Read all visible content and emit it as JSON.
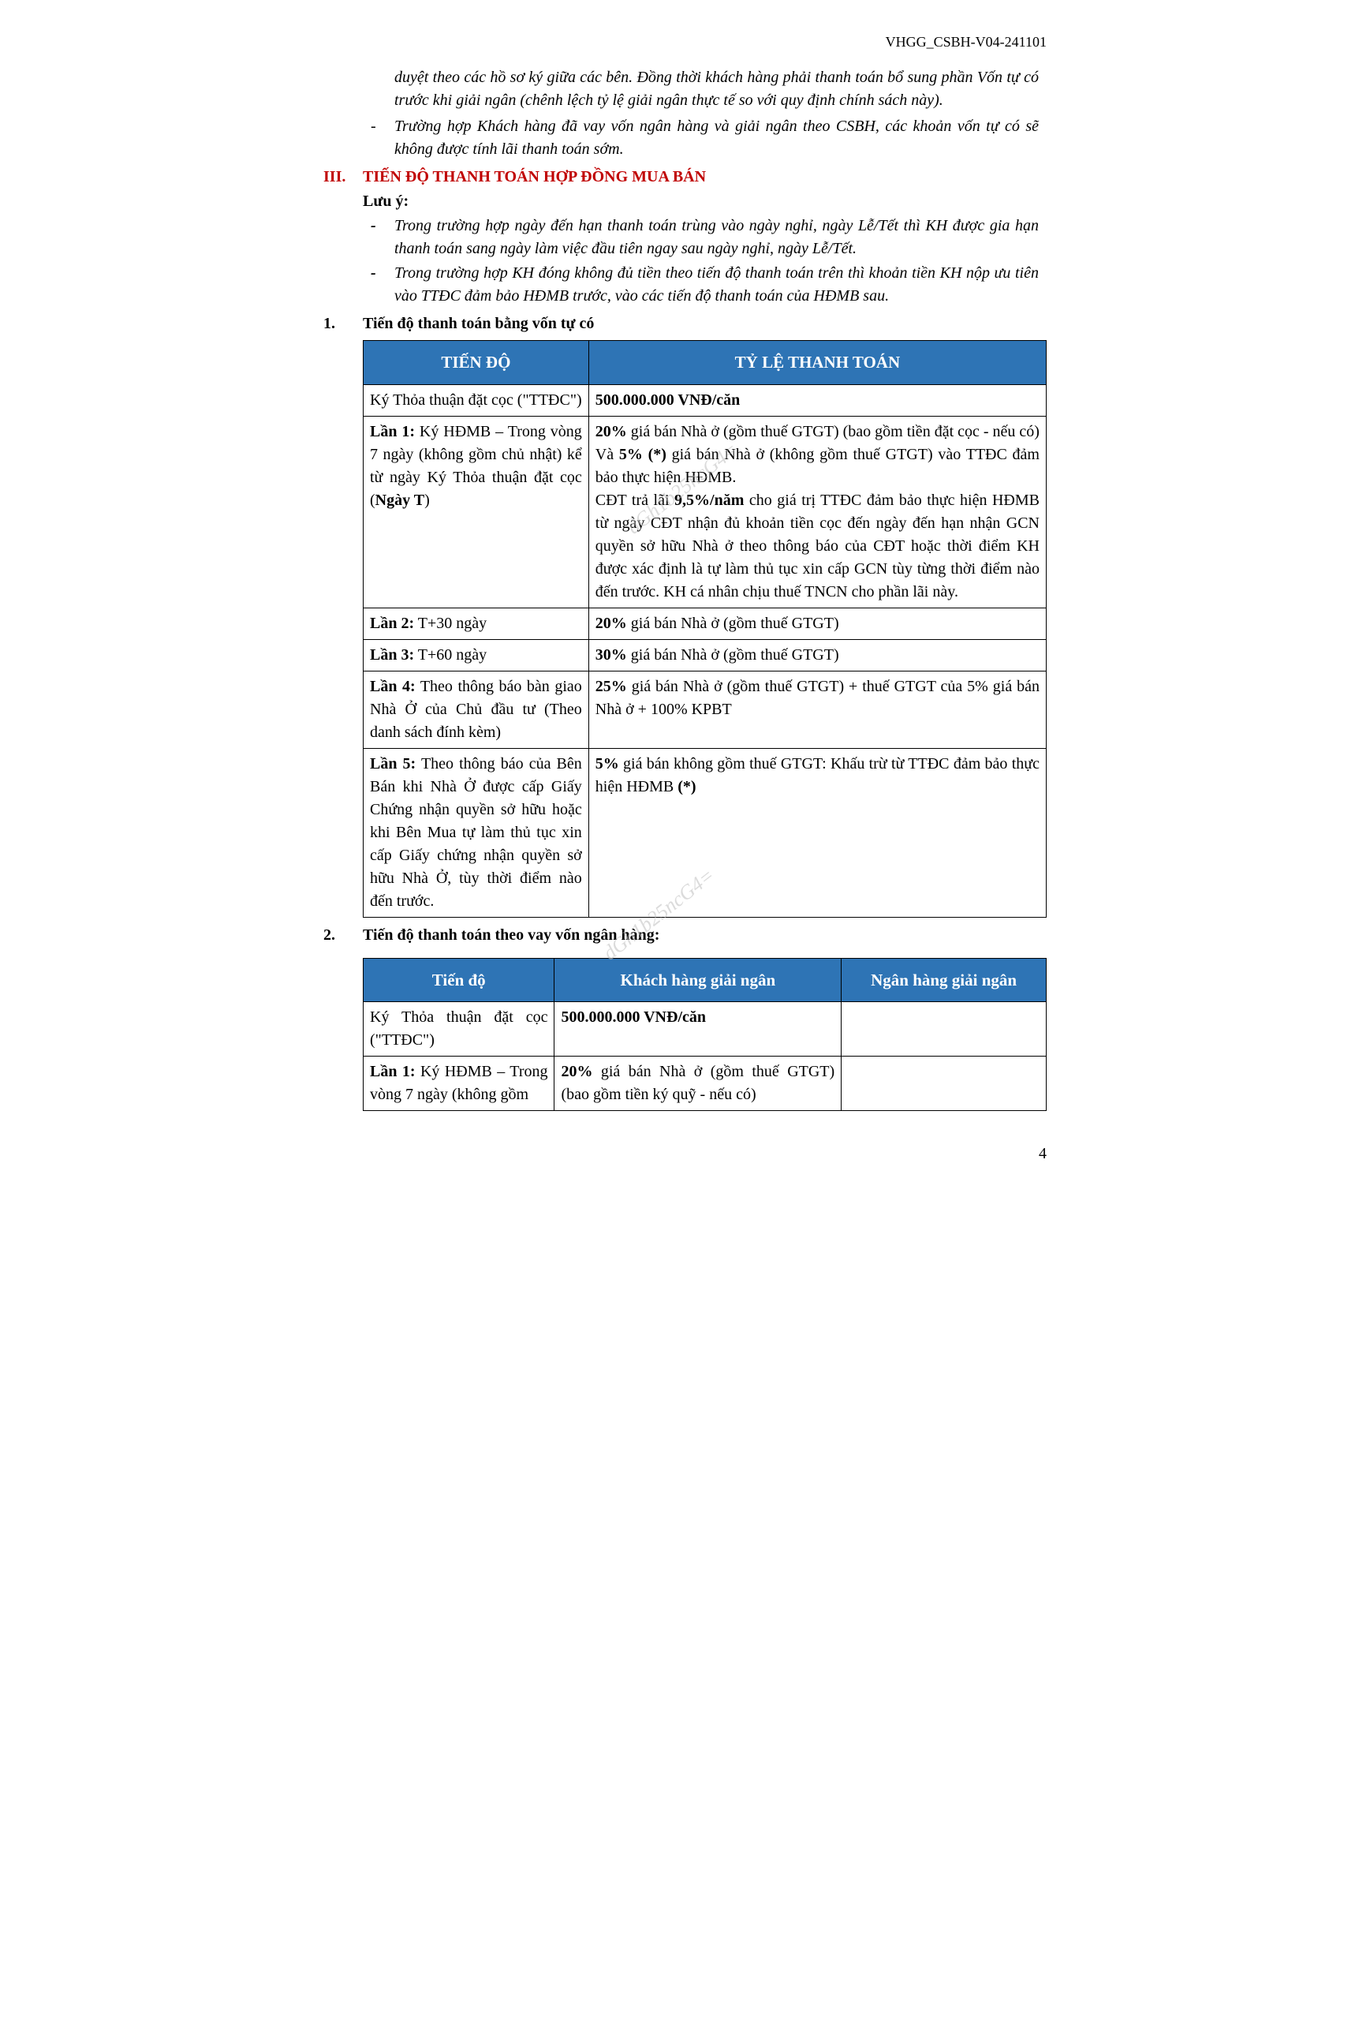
{
  "header": {
    "doc_code": "VHGG_CSBH-V04-241101"
  },
  "intro": {
    "para1": "duyệt theo các hồ sơ ký giữa các bên. Đồng thời khách hàng phải thanh toán bổ sung phần Vốn tự có trước khi giải ngân (chênh lệch tỷ lệ giải ngân thực tế so với quy định chính sách này).",
    "bullet_dash": "-",
    "bullet1": "Trường hợp Khách hàng đã vay vốn ngân hàng và giải ngân theo CSBH, các khoản vốn tự có sẽ không được tính lãi thanh toán sớm."
  },
  "section3": {
    "num": "III.",
    "title": "TIẾN ĐỘ THANH TOÁN HỢP ĐỒNG MUA BÁN",
    "luu_y": "Lưu ý:",
    "note_dash": "-",
    "note1": "Trong trường hợp ngày đến hạn thanh toán trùng vào ngày nghỉ, ngày Lễ/Tết thì KH được gia hạn thanh toán sang ngày làm việc đầu tiên ngay sau ngày nghỉ, ngày Lễ/Tết.",
    "note2": "Trong trường hợp KH đóng không đủ tiền theo tiến độ thanh toán trên thì khoản tiền KH nộp ưu tiên vào TTĐC đảm bảo HĐMB trước, vào các tiến độ thanh toán của HĐMB sau."
  },
  "sub1": {
    "num": "1.",
    "title": "Tiến độ thanh toán bằng vốn tự có"
  },
  "table1": {
    "header_bg": "#2e74b5",
    "header_fg": "#ffffff",
    "col1": "TIẾN ĐỘ",
    "col2": "TỶ LỆ THANH TOÁN",
    "rows": [
      {
        "c1_html": "Ký Thỏa thuận đặt cọc (\"TTĐC\")",
        "c2_html": "<b>500.000.000 VNĐ/căn</b>"
      },
      {
        "c1_html": "<b>Lần 1:</b> Ký HĐMB – Trong vòng 7 ngày (không gồm chủ nhật) kể từ ngày Ký Thỏa thuận đặt cọc (<b>Ngày T</b>)",
        "c2_html": "<b>20%</b> giá bán Nhà ở (gồm thuế GTGT) (bao gồm tiền đặt cọc - nếu có)<br>Và <b>5% (*)</b> giá bán Nhà ở (không gồm thuế GTGT) vào TTĐC đảm bảo thực hiện HĐMB.<br>CĐT trả lãi <b>9,5%/năm</b> cho giá trị TTĐC đảm bảo thực hiện HĐMB từ ngày CĐT nhận đủ khoản tiền cọc đến ngày đến hạn nhận GCN quyền sở hữu Nhà ở theo thông báo của CĐT hoặc thời điểm KH được xác định là tự làm thủ tục xin cấp GCN tùy từng thời điểm nào đến trước. KH cá nhân chịu thuế TNCN cho phần lãi này."
      },
      {
        "c1_html": "<b>Lần 2:</b> T+30 ngày",
        "c2_html": "<b>20%</b> giá bán Nhà ở (gồm thuế GTGT)"
      },
      {
        "c1_html": "<b>Lần 3:</b> T+60 ngày",
        "c2_html": "<b>30%</b> giá bán Nhà ở (gồm thuế GTGT)"
      },
      {
        "c1_html": "<b>Lần 4:</b> Theo thông báo bàn giao Nhà Ở của Chủ đầu tư (Theo danh sách đính kèm)",
        "c2_html": "<b>25%</b> giá bán Nhà ở (gồm thuế GTGT) + thuế GTGT của 5% giá bán Nhà ở + 100% KPBT"
      },
      {
        "c1_html": "<b>Lần 5:</b> Theo thông báo của Bên Bán khi Nhà Ở được cấp Giấy Chứng nhận quyền sở hữu hoặc khi Bên Mua tự làm thủ tục xin cấp Giấy chứng nhận quyền sở hữu Nhà Ở, tùy thời điểm nào đến trước.",
        "c2_html": "<b>5%</b> giá bán không gồm thuế GTGT: Khấu trừ từ TTĐC đảm bảo thực hiện HĐMB <b>(*)</b>"
      }
    ]
  },
  "sub2": {
    "num": "2.",
    "title": "Tiến độ thanh toán theo vay vốn ngân hàng:"
  },
  "table2": {
    "header_bg": "#2e74b5",
    "header_fg": "#ffffff",
    "col1": "Tiến độ",
    "col2": "Khách hàng giải ngân",
    "col3": "Ngân hàng giải ngân",
    "rows": [
      {
        "c1_html": "Ký Thỏa thuận đặt cọc (\"TTĐC\")",
        "c2_html": "<b>500.000.000 VNĐ/căn</b>",
        "c3_html": ""
      },
      {
        "c1_html": "<b>Lần 1:</b> Ký HĐMB – Trong vòng 7 ngày (không gồm",
        "c2_html": "<b>20%</b> giá bán Nhà ở (gồm thuế GTGT) (bao gồm tiền ký quỹ - nếu có)",
        "c3_html": ""
      }
    ]
  },
  "watermark": "dGh1b25ncG4=",
  "page_num": "4"
}
